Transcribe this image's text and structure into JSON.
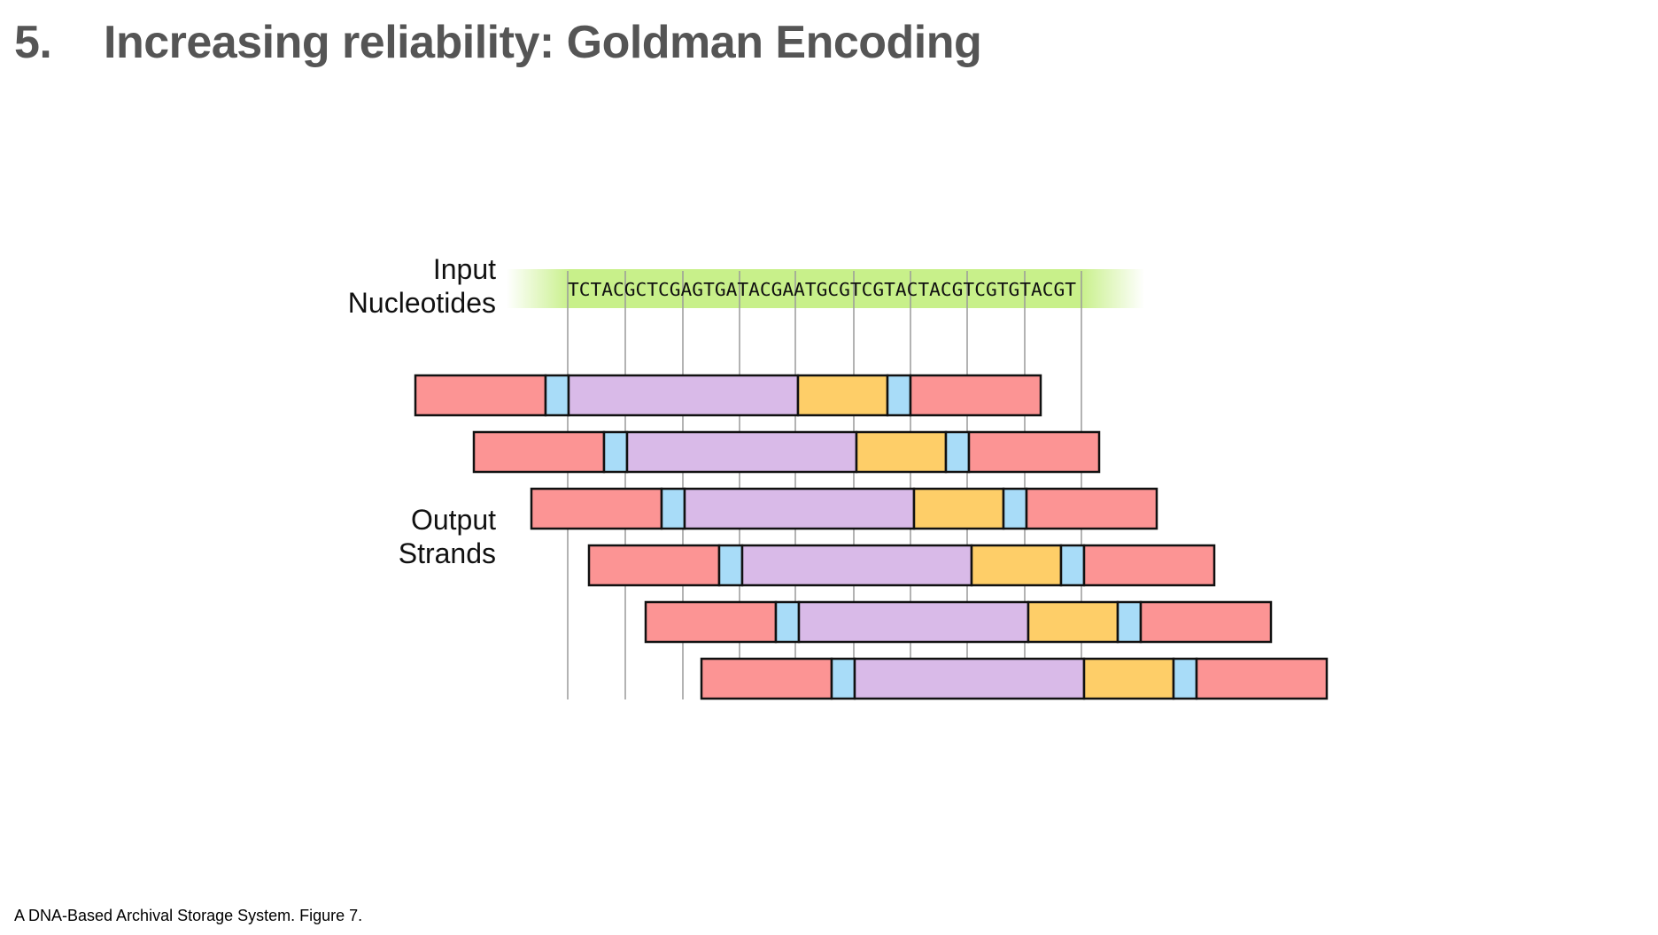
{
  "slide": {
    "number": "5.",
    "title": "Increasing reliability: Goldman Encoding",
    "citation": "A DNA-Based Archival Storage System. Figure 7."
  },
  "diagram": {
    "input_label": [
      "Input",
      "Nucleotides"
    ],
    "output_label": [
      "Output",
      "Strands"
    ],
    "input_sequence": "TCTACGCTCGAGTGATACGAATGCGTCGTACTACGTCGTGTACGT",
    "strand_count": 6,
    "segment_order": [
      "primer",
      "index",
      "payload",
      "address",
      "index",
      "primer"
    ],
    "colors": {
      "primer": "#fc9494",
      "index": "#a8dcf8",
      "payload": "#d9bae8",
      "address": "#fece68",
      "input_band": "#c8f08a"
    }
  }
}
